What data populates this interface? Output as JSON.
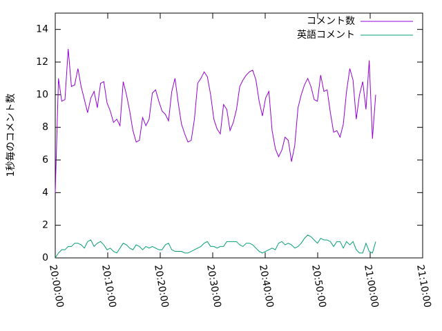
{
  "chart_data": {
    "type": "line",
    "y_label": "1秒毎のコメント数",
    "x": [
      "20:00:00",
      "20:00:37",
      "20:01:14",
      "20:01:51",
      "20:02:28",
      "20:03:05",
      "20:03:42",
      "20:04:19",
      "20:04:56",
      "20:05:33",
      "20:06:10",
      "20:06:47",
      "20:07:24",
      "20:08:01",
      "20:08:38",
      "20:09:15",
      "20:09:52",
      "20:10:29",
      "20:11:06",
      "20:11:43",
      "20:12:20",
      "20:12:57",
      "20:13:34",
      "20:14:11",
      "20:14:48",
      "20:15:25",
      "20:16:02",
      "20:16:39",
      "20:17:16",
      "20:17:53",
      "20:18:30",
      "20:19:07",
      "20:19:44",
      "20:20:21",
      "20:20:58",
      "20:21:35",
      "20:22:12",
      "20:22:49",
      "20:23:26",
      "20:24:03",
      "20:24:40",
      "20:25:17",
      "20:25:54",
      "20:26:31",
      "20:27:08",
      "20:27:45",
      "20:28:22",
      "20:28:59",
      "20:29:36",
      "20:30:13",
      "20:30:50",
      "20:31:27",
      "20:32:04",
      "20:32:41",
      "20:33:18",
      "20:33:55",
      "20:34:32",
      "20:35:09",
      "20:35:46",
      "20:36:23",
      "20:37:00",
      "20:37:37",
      "20:38:14",
      "20:38:51",
      "20:39:28",
      "20:40:05",
      "20:40:42",
      "20:41:19",
      "20:41:56",
      "20:42:33",
      "20:43:10",
      "20:43:47",
      "20:44:24",
      "20:45:01",
      "20:45:38",
      "20:46:15",
      "20:46:52",
      "20:47:29",
      "20:48:06",
      "20:48:43",
      "20:49:20",
      "20:49:57",
      "20:50:34",
      "20:51:11",
      "20:51:48",
      "20:52:25",
      "20:53:02",
      "20:53:39",
      "20:54:16",
      "20:54:53",
      "20:55:30",
      "20:56:07",
      "20:56:44",
      "20:57:21",
      "20:57:58",
      "20:58:35",
      "20:59:12",
      "20:59:49",
      "21:00:26",
      "21:01:03"
    ],
    "series": [
      {
        "name": "コメント数",
        "color": "#9400d3",
        "values": [
          4.0,
          11.0,
          9.6,
          9.7,
          12.8,
          10.5,
          10.6,
          11.6,
          10.5,
          9.7,
          8.9,
          9.8,
          10.2,
          9.2,
          10.7,
          10.8,
          9.5,
          9.0,
          8.3,
          8.5,
          8.1,
          10.8,
          10.0,
          9.0,
          7.8,
          7.1,
          7.2,
          8.6,
          8.1,
          8.5,
          10.1,
          10.3,
          9.6,
          9.0,
          8.8,
          8.4,
          10.2,
          11.0,
          9.5,
          8.2,
          7.6,
          7.1,
          7.2,
          8.5,
          10.7,
          11.0,
          11.4,
          11.1,
          10.0,
          8.5,
          7.9,
          7.6,
          9.4,
          9.1,
          7.8,
          8.3,
          9.1,
          10.5,
          10.9,
          11.2,
          11.4,
          11.5,
          10.9,
          9.6,
          8.7,
          9.8,
          10.2,
          7.8,
          6.7,
          6.2,
          6.6,
          7.4,
          7.2,
          5.9,
          6.9,
          9.2,
          10.0,
          10.6,
          11.0,
          10.5,
          9.7,
          9.6,
          11.2,
          10.2,
          10.3,
          8.9,
          7.7,
          7.8,
          7.4,
          8.2,
          10.2,
          11.6,
          10.9,
          8.5,
          10.0,
          10.8,
          9.1,
          12.1,
          7.3,
          10.0
        ]
      },
      {
        "name": "英語コメント",
        "color": "#009e73",
        "values": [
          0.0,
          0.3,
          0.5,
          0.5,
          0.7,
          0.7,
          0.9,
          0.9,
          0.8,
          0.6,
          1.0,
          1.1,
          0.7,
          0.9,
          1.0,
          0.8,
          0.5,
          0.6,
          0.4,
          0.3,
          0.6,
          0.9,
          0.8,
          0.6,
          0.5,
          0.8,
          0.7,
          0.5,
          0.7,
          0.6,
          0.7,
          0.6,
          0.5,
          0.5,
          0.8,
          0.9,
          0.5,
          0.4,
          0.4,
          0.4,
          0.3,
          0.3,
          0.4,
          0.5,
          0.6,
          0.7,
          0.9,
          1.0,
          0.7,
          0.7,
          0.6,
          0.7,
          0.7,
          1.0,
          1.0,
          1.0,
          1.0,
          0.8,
          0.7,
          0.9,
          0.9,
          0.8,
          0.6,
          0.4,
          0.3,
          0.4,
          0.5,
          0.6,
          0.5,
          0.9,
          1.0,
          0.8,
          0.9,
          0.8,
          0.6,
          0.7,
          0.9,
          1.2,
          1.4,
          1.3,
          1.1,
          0.9,
          1.2,
          1.1,
          1.1,
          1.0,
          0.7,
          1.0,
          1.0,
          0.6,
          1.0,
          0.8,
          1.0,
          0.5,
          0.3,
          0.3,
          0.9,
          0.4,
          0.3,
          1.0
        ]
      }
    ],
    "xlim": [
      "20:00:00",
      "21:10:00"
    ],
    "xticks": [
      "20:00:00",
      "20:10:00",
      "20:20:00",
      "20:30:00",
      "20:40:00",
      "20:50:00",
      "21:00:00",
      "21:10:00"
    ],
    "ylim": [
      0,
      15
    ],
    "yticks": [
      0,
      2,
      4,
      6,
      8,
      10,
      12,
      14
    ],
    "legend": "top-right"
  }
}
